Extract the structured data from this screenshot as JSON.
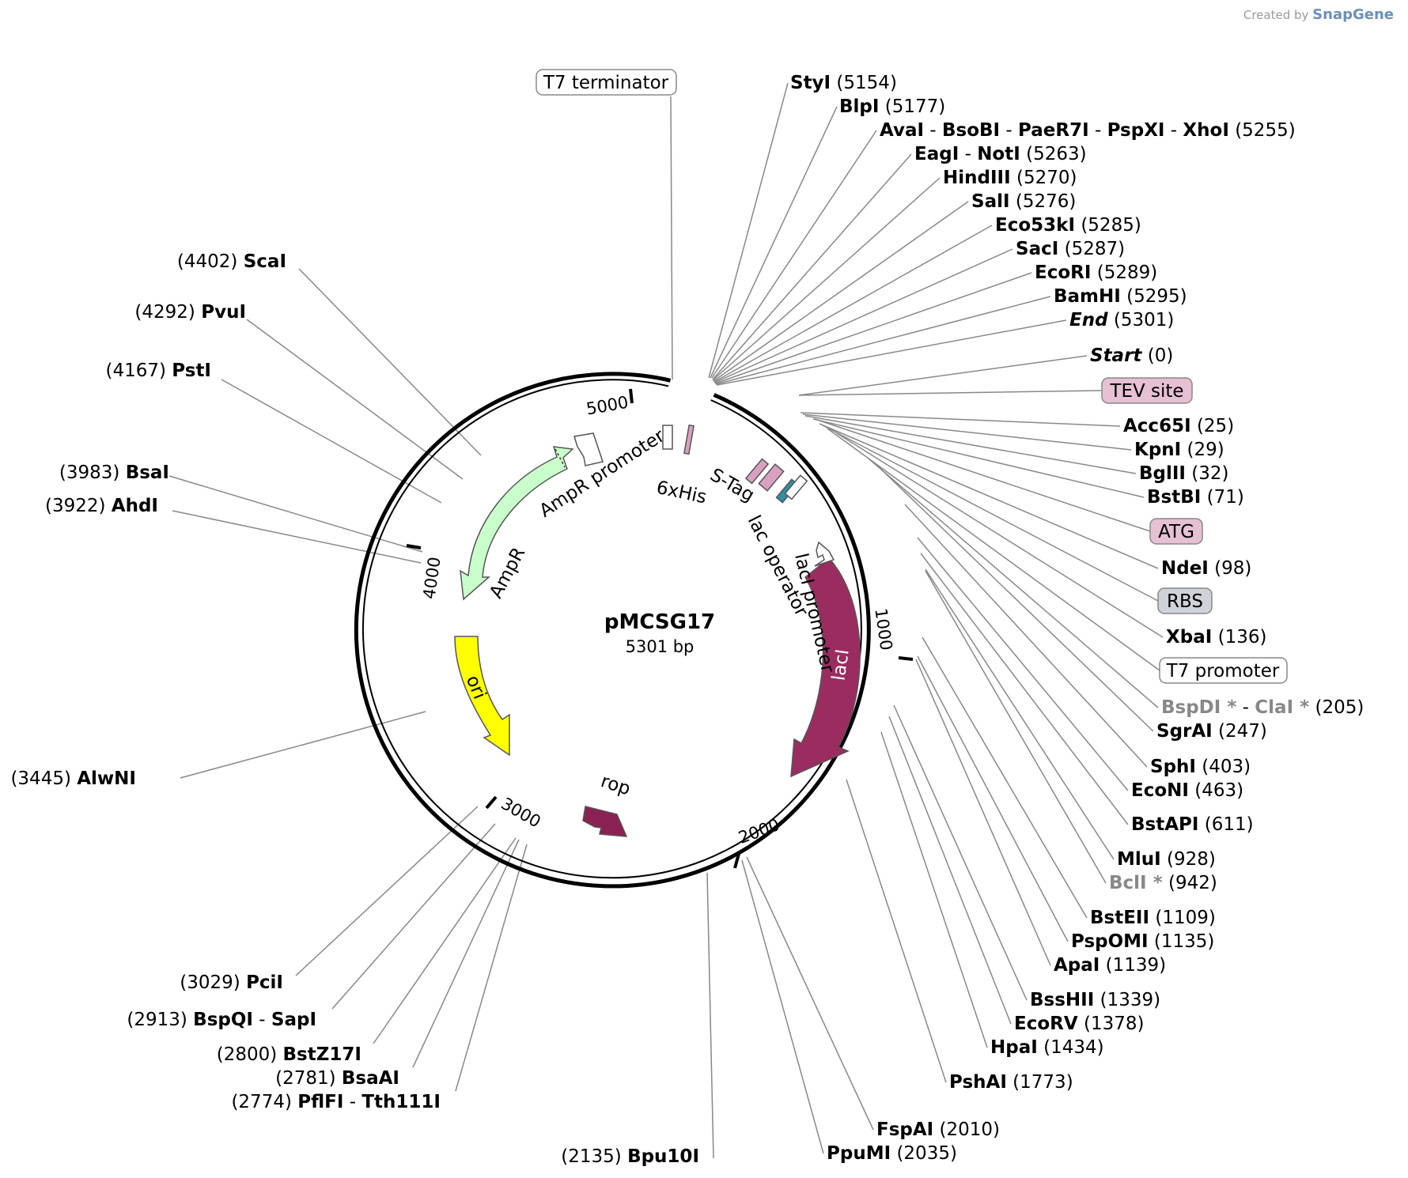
{
  "credit": {
    "prefix": "Created by",
    "brand": "SnapGene"
  },
  "plasmid": {
    "name": "pMCSG17",
    "size_label": "5301 bp"
  },
  "ticks": [
    "1000",
    "2000",
    "3000",
    "4000",
    "5000"
  ],
  "colors": {
    "ampr": "#c9ffcb",
    "lacI": "#9b2c5f",
    "ori": "#ffff00",
    "rop": "#8b2152",
    "stag": "#d9a0c0",
    "his": "#d9a0c0",
    "lacop": "#2e8fa3",
    "line": "#888888"
  },
  "features": {
    "t7_terminator": "T7 terminator",
    "tev_site": "TEV site",
    "atg": "ATG",
    "rbs": "RBS",
    "t7_promoter": "T7 promoter",
    "ampr_promoter": "AmpR promoter",
    "ampr": "AmpR",
    "his": "6xHis",
    "stag": "S-Tag",
    "lac_operator": "lac operator",
    "laci_promoter": "lacI promoter",
    "laci": "lacI",
    "ori": "ori",
    "rop": "rop"
  },
  "sites_right": [
    {
      "names": [
        "StyI"
      ],
      "pos": "(5154)"
    },
    {
      "names": [
        "BlpI"
      ],
      "pos": "(5177)"
    },
    {
      "names": [
        "AvaI",
        "BsoBI",
        "PaeR7I",
        "PspXI",
        "XhoI"
      ],
      "pos": "(5255)"
    },
    {
      "names": [
        "EagI",
        "NotI"
      ],
      "pos": "(5263)"
    },
    {
      "names": [
        "HindIII"
      ],
      "pos": "(5270)"
    },
    {
      "names": [
        "SalI"
      ],
      "pos": "(5276)"
    },
    {
      "names": [
        "Eco53kI"
      ],
      "pos": "(5285)"
    },
    {
      "names": [
        "SacI"
      ],
      "pos": "(5287)"
    },
    {
      "names": [
        "EcoRI"
      ],
      "pos": "(5289)"
    },
    {
      "names": [
        "BamHI"
      ],
      "pos": "(5295)"
    },
    {
      "names": [
        "End"
      ],
      "pos": "(5301)"
    },
    {
      "names": [
        "Start"
      ],
      "pos": "(0)"
    },
    {
      "names": [
        "Acc65I"
      ],
      "pos": "(25)"
    },
    {
      "names": [
        "KpnI"
      ],
      "pos": "(29)"
    },
    {
      "names": [
        "BglII"
      ],
      "pos": "(32)"
    },
    {
      "names": [
        "BstBI"
      ],
      "pos": "(71)"
    },
    {
      "names": [
        "NdeI"
      ],
      "pos": "(98)"
    },
    {
      "names": [
        "XbaI"
      ],
      "pos": "(136)"
    },
    {
      "names": [
        "BspDI *",
        "ClaI *"
      ],
      "pos": "(205)"
    },
    {
      "names": [
        "SgrAI"
      ],
      "pos": "(247)"
    },
    {
      "names": [
        "SphI"
      ],
      "pos": "(403)"
    },
    {
      "names": [
        "EcoNI"
      ],
      "pos": "(463)"
    },
    {
      "names": [
        "BstAPI"
      ],
      "pos": "(611)"
    },
    {
      "names": [
        "MluI"
      ],
      "pos": "(928)"
    },
    {
      "names": [
        "BclI *"
      ],
      "pos": "(942)"
    },
    {
      "names": [
        "BstEII"
      ],
      "pos": "(1109)"
    },
    {
      "names": [
        "PspOMI"
      ],
      "pos": "(1135)"
    },
    {
      "names": [
        "ApaI"
      ],
      "pos": "(1139)"
    },
    {
      "names": [
        "BssHII"
      ],
      "pos": "(1339)"
    },
    {
      "names": [
        "EcoRV"
      ],
      "pos": "(1378)"
    },
    {
      "names": [
        "HpaI"
      ],
      "pos": "(1434)"
    },
    {
      "names": [
        "PshAI"
      ],
      "pos": "(1773)"
    },
    {
      "names": [
        "FspAI"
      ],
      "pos": "(2010)"
    },
    {
      "names": [
        "PpuMI"
      ],
      "pos": "(2035)"
    }
  ],
  "sites_left": [
    {
      "names": [
        "ScaI"
      ],
      "pos": "(4402)"
    },
    {
      "names": [
        "PvuI"
      ],
      "pos": "(4292)"
    },
    {
      "names": [
        "PstI"
      ],
      "pos": "(4167)"
    },
    {
      "names": [
        "BsaI"
      ],
      "pos": "(3983)"
    },
    {
      "names": [
        "AhdI"
      ],
      "pos": "(3922)"
    },
    {
      "names": [
        "AlwNI"
      ],
      "pos": "(3445)"
    },
    {
      "names": [
        "PciI"
      ],
      "pos": "(3029)"
    },
    {
      "names": [
        "BspQI",
        "SapI"
      ],
      "pos": "(2913)"
    },
    {
      "names": [
        "BstZ17I"
      ],
      "pos": "(2800)"
    },
    {
      "names": [
        "BsaAI"
      ],
      "pos": "(2781)"
    },
    {
      "names": [
        "PflFI",
        "Tth111I"
      ],
      "pos": "(2774)"
    },
    {
      "names": [
        "Bpu10I"
      ],
      "pos": "(2135)"
    }
  ]
}
